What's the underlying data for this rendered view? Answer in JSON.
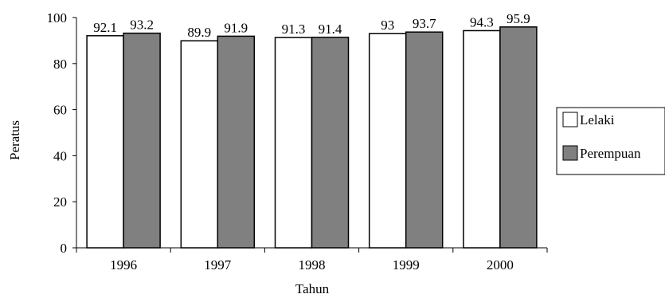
{
  "chart_data": {
    "type": "bar",
    "title": "",
    "xlabel": "Tahun",
    "ylabel": "Peratus",
    "categories": [
      "1996",
      "1997",
      "1998",
      "1999",
      "2000"
    ],
    "ylim": [
      0,
      100
    ],
    "yticks": [
      0,
      20,
      40,
      60,
      80,
      100
    ],
    "grid": false,
    "legend_position": "right",
    "series": [
      {
        "name": "Lelaki",
        "values": [
          92.1,
          89.9,
          91.3,
          93,
          94.3
        ],
        "labels": [
          "92.1",
          "89.9",
          "91.3",
          "93",
          "94.3"
        ],
        "color": "#ffffff"
      },
      {
        "name": "Perempuan",
        "values": [
          93.2,
          91.9,
          91.4,
          93.7,
          95.9
        ],
        "labels": [
          "93.2",
          "91.9",
          "91.4",
          "93.7",
          "95.9"
        ],
        "color": "#808080"
      }
    ]
  }
}
